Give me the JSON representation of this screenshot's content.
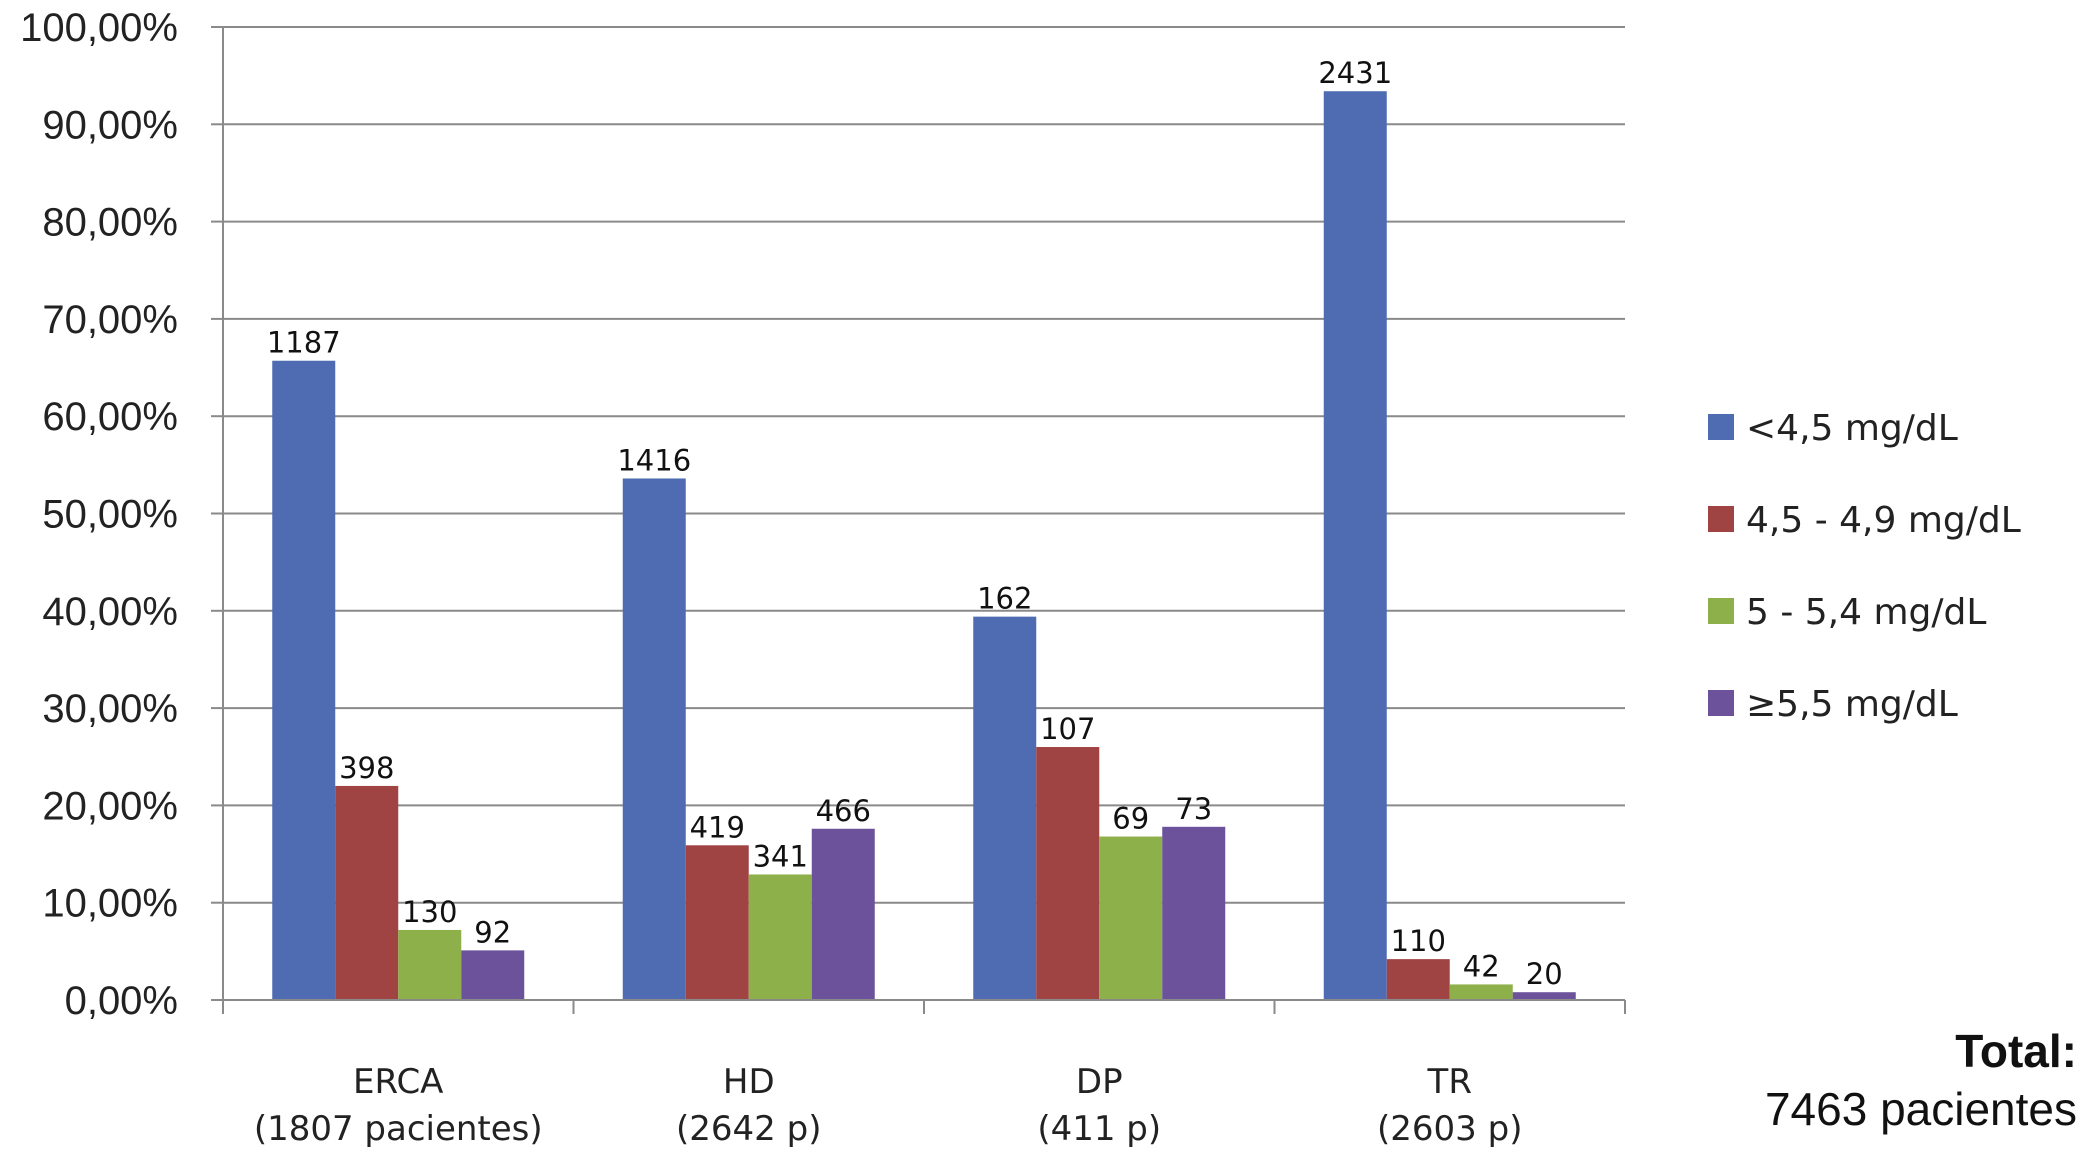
{
  "chart_data": {
    "type": "bar",
    "categories": [
      {
        "line1": "ERCA",
        "line2": "(1807 pacientes)"
      },
      {
        "line1": "HD",
        "line2": "(2642 p)"
      },
      {
        "line1": "DP",
        "line2": "(411 p)"
      },
      {
        "line1": "TR",
        "line2": "(2603 p)"
      }
    ],
    "series": [
      {
        "name": "<4,5 mg/dL",
        "color": "#4F6CB3",
        "values": [
          65.7,
          53.6,
          39.4,
          93.4
        ],
        "labels": [
          "1187",
          "1416",
          "162",
          "2431"
        ]
      },
      {
        "name": "4,5 - 4,9 mg/dL",
        "color": "#A04343",
        "values": [
          22.0,
          15.9,
          26.0,
          4.2
        ],
        "labels": [
          "398",
          "419",
          "107",
          "110"
        ]
      },
      {
        "name": "5 - 5,4 mg/dL",
        "color": "#8DB04B",
        "values": [
          7.2,
          12.9,
          16.8,
          1.6
        ],
        "labels": [
          "130",
          "341",
          "69",
          "42"
        ]
      },
      {
        "name": "≥5,5 mg/dL",
        "color": "#6B529A",
        "values": [
          5.1,
          17.6,
          17.8,
          0.8
        ],
        "labels": [
          "92",
          "466",
          "73",
          "20"
        ]
      }
    ],
    "yticks": [
      "0,00%",
      "10,00%",
      "20,00%",
      "30,00%",
      "40,00%",
      "50,00%",
      "60,00%",
      "70,00%",
      "80,00%",
      "90,00%",
      "100,00%"
    ],
    "ylim": [
      0,
      100
    ],
    "grid": true,
    "legend_position": "right"
  },
  "total": {
    "label": "Total:",
    "value": "7463 pacientes"
  }
}
